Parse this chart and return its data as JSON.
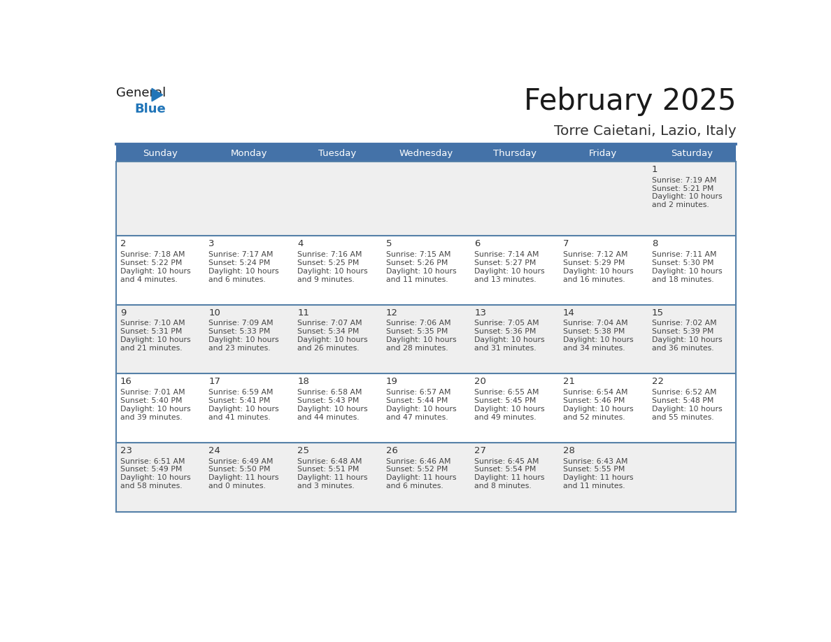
{
  "title": "February 2025",
  "subtitle": "Torre Caietani, Lazio, Italy",
  "header_bg": "#4472A8",
  "header_text_color": "#FFFFFF",
  "cell_bg_odd": "#EFEFEF",
  "cell_bg_even": "#FFFFFF",
  "border_color": "#4472A8",
  "row_line_color": "#5580A8",
  "day_names": [
    "Sunday",
    "Monday",
    "Tuesday",
    "Wednesday",
    "Thursday",
    "Friday",
    "Saturday"
  ],
  "title_color": "#1a1a1a",
  "subtitle_color": "#333333",
  "day_num_color": "#333333",
  "info_color": "#444444",
  "days": [
    {
      "day": 1,
      "col": 6,
      "row": 0,
      "sunrise": "7:19 AM",
      "sunset": "5:21 PM",
      "daylight_line1": "Daylight: 10 hours",
      "daylight_line2": "and 2 minutes."
    },
    {
      "day": 2,
      "col": 0,
      "row": 1,
      "sunrise": "7:18 AM",
      "sunset": "5:22 PM",
      "daylight_line1": "Daylight: 10 hours",
      "daylight_line2": "and 4 minutes."
    },
    {
      "day": 3,
      "col": 1,
      "row": 1,
      "sunrise": "7:17 AM",
      "sunset": "5:24 PM",
      "daylight_line1": "Daylight: 10 hours",
      "daylight_line2": "and 6 minutes."
    },
    {
      "day": 4,
      "col": 2,
      "row": 1,
      "sunrise": "7:16 AM",
      "sunset": "5:25 PM",
      "daylight_line1": "Daylight: 10 hours",
      "daylight_line2": "and 9 minutes."
    },
    {
      "day": 5,
      "col": 3,
      "row": 1,
      "sunrise": "7:15 AM",
      "sunset": "5:26 PM",
      "daylight_line1": "Daylight: 10 hours",
      "daylight_line2": "and 11 minutes."
    },
    {
      "day": 6,
      "col": 4,
      "row": 1,
      "sunrise": "7:14 AM",
      "sunset": "5:27 PM",
      "daylight_line1": "Daylight: 10 hours",
      "daylight_line2": "and 13 minutes."
    },
    {
      "day": 7,
      "col": 5,
      "row": 1,
      "sunrise": "7:12 AM",
      "sunset": "5:29 PM",
      "daylight_line1": "Daylight: 10 hours",
      "daylight_line2": "and 16 minutes."
    },
    {
      "day": 8,
      "col": 6,
      "row": 1,
      "sunrise": "7:11 AM",
      "sunset": "5:30 PM",
      "daylight_line1": "Daylight: 10 hours",
      "daylight_line2": "and 18 minutes."
    },
    {
      "day": 9,
      "col": 0,
      "row": 2,
      "sunrise": "7:10 AM",
      "sunset": "5:31 PM",
      "daylight_line1": "Daylight: 10 hours",
      "daylight_line2": "and 21 minutes."
    },
    {
      "day": 10,
      "col": 1,
      "row": 2,
      "sunrise": "7:09 AM",
      "sunset": "5:33 PM",
      "daylight_line1": "Daylight: 10 hours",
      "daylight_line2": "and 23 minutes."
    },
    {
      "day": 11,
      "col": 2,
      "row": 2,
      "sunrise": "7:07 AM",
      "sunset": "5:34 PM",
      "daylight_line1": "Daylight: 10 hours",
      "daylight_line2": "and 26 minutes."
    },
    {
      "day": 12,
      "col": 3,
      "row": 2,
      "sunrise": "7:06 AM",
      "sunset": "5:35 PM",
      "daylight_line1": "Daylight: 10 hours",
      "daylight_line2": "and 28 minutes."
    },
    {
      "day": 13,
      "col": 4,
      "row": 2,
      "sunrise": "7:05 AM",
      "sunset": "5:36 PM",
      "daylight_line1": "Daylight: 10 hours",
      "daylight_line2": "and 31 minutes."
    },
    {
      "day": 14,
      "col": 5,
      "row": 2,
      "sunrise": "7:04 AM",
      "sunset": "5:38 PM",
      "daylight_line1": "Daylight: 10 hours",
      "daylight_line2": "and 34 minutes."
    },
    {
      "day": 15,
      "col": 6,
      "row": 2,
      "sunrise": "7:02 AM",
      "sunset": "5:39 PM",
      "daylight_line1": "Daylight: 10 hours",
      "daylight_line2": "and 36 minutes."
    },
    {
      "day": 16,
      "col": 0,
      "row": 3,
      "sunrise": "7:01 AM",
      "sunset": "5:40 PM",
      "daylight_line1": "Daylight: 10 hours",
      "daylight_line2": "and 39 minutes."
    },
    {
      "day": 17,
      "col": 1,
      "row": 3,
      "sunrise": "6:59 AM",
      "sunset": "5:41 PM",
      "daylight_line1": "Daylight: 10 hours",
      "daylight_line2": "and 41 minutes."
    },
    {
      "day": 18,
      "col": 2,
      "row": 3,
      "sunrise": "6:58 AM",
      "sunset": "5:43 PM",
      "daylight_line1": "Daylight: 10 hours",
      "daylight_line2": "and 44 minutes."
    },
    {
      "day": 19,
      "col": 3,
      "row": 3,
      "sunrise": "6:57 AM",
      "sunset": "5:44 PM",
      "daylight_line1": "Daylight: 10 hours",
      "daylight_line2": "and 47 minutes."
    },
    {
      "day": 20,
      "col": 4,
      "row": 3,
      "sunrise": "6:55 AM",
      "sunset": "5:45 PM",
      "daylight_line1": "Daylight: 10 hours",
      "daylight_line2": "and 49 minutes."
    },
    {
      "day": 21,
      "col": 5,
      "row": 3,
      "sunrise": "6:54 AM",
      "sunset": "5:46 PM",
      "daylight_line1": "Daylight: 10 hours",
      "daylight_line2": "and 52 minutes."
    },
    {
      "day": 22,
      "col": 6,
      "row": 3,
      "sunrise": "6:52 AM",
      "sunset": "5:48 PM",
      "daylight_line1": "Daylight: 10 hours",
      "daylight_line2": "and 55 minutes."
    },
    {
      "day": 23,
      "col": 0,
      "row": 4,
      "sunrise": "6:51 AM",
      "sunset": "5:49 PM",
      "daylight_line1": "Daylight: 10 hours",
      "daylight_line2": "and 58 minutes."
    },
    {
      "day": 24,
      "col": 1,
      "row": 4,
      "sunrise": "6:49 AM",
      "sunset": "5:50 PM",
      "daylight_line1": "Daylight: 11 hours",
      "daylight_line2": "and 0 minutes."
    },
    {
      "day": 25,
      "col": 2,
      "row": 4,
      "sunrise": "6:48 AM",
      "sunset": "5:51 PM",
      "daylight_line1": "Daylight: 11 hours",
      "daylight_line2": "and 3 minutes."
    },
    {
      "day": 26,
      "col": 3,
      "row": 4,
      "sunrise": "6:46 AM",
      "sunset": "5:52 PM",
      "daylight_line1": "Daylight: 11 hours",
      "daylight_line2": "and 6 minutes."
    },
    {
      "day": 27,
      "col": 4,
      "row": 4,
      "sunrise": "6:45 AM",
      "sunset": "5:54 PM",
      "daylight_line1": "Daylight: 11 hours",
      "daylight_line2": "and 8 minutes."
    },
    {
      "day": 28,
      "col": 5,
      "row": 4,
      "sunrise": "6:43 AM",
      "sunset": "5:55 PM",
      "daylight_line1": "Daylight: 11 hours",
      "daylight_line2": "and 11 minutes."
    }
  ],
  "num_rows": 5,
  "logo_color_text": "#1a1a1a",
  "logo_color_blue": "#2175B8"
}
